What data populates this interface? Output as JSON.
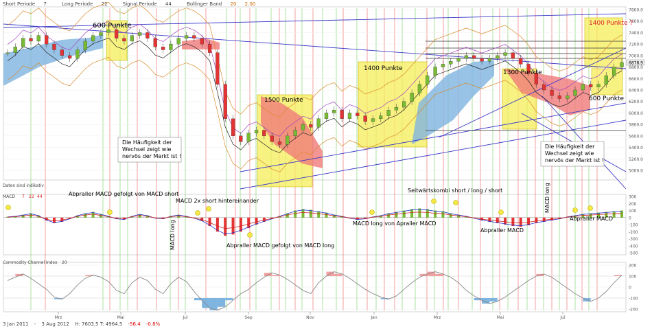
{
  "header": {
    "short_label": "Short Periode",
    "short_val": "7",
    "long_label": "Long Periode",
    "long_val": "22",
    "signal_label": "Signal Periode",
    "signal_val": "44",
    "bb_label": "Bollinger Band",
    "bb_val1": "20",
    "bb_val2": "2.00"
  },
  "footer": {
    "start": "3 Jan 2011",
    "sep": "-",
    "end": "3 Aug 2012",
    "ohlc": "H: 7603.5  T: 4964.5",
    "chg": "-56.4",
    "chg_pct": "-0.8%"
  },
  "colors": {
    "up": "#77bb33",
    "down": "#e33333",
    "cloud_up": "#7fb4e0",
    "cloud_down": "#f07a7a",
    "box": "#f5ee5a",
    "vline_green": "#7cd16a",
    "vline_red": "#ee6a6a",
    "trend": "#3a3ac8"
  },
  "chart_data": {
    "type": "line",
    "price_panel": {
      "yticks": [
        "7800.0",
        "7600.0",
        "7400.0",
        "7200.0",
        "7000.0",
        "6800.0",
        "6600.0",
        "6400.0",
        "6200.0",
        "6000.0",
        "5800.0",
        "5600.0",
        "5400.0",
        "5200.0",
        "5000.0"
      ],
      "last_value": "6878.9",
      "x_ticks": [
        "Mrz",
        "Mai",
        "Jul",
        "Sep",
        "Nov",
        "Jan",
        "Mrz",
        "Mai",
        "Jul"
      ],
      "annotations": [
        {
          "text": "600 Punkte",
          "color": "#000"
        },
        {
          "text": "1500 Punkte",
          "color": "#000"
        },
        {
          "text": "1400 Punkte",
          "color": "#000"
        },
        {
          "text": "1300 Punkte",
          "color": "#000"
        },
        {
          "text": "1400 Punkte ?",
          "color": "#d22"
        },
        {
          "text": "600 Punkte",
          "color": "#000"
        }
      ],
      "notes": [
        {
          "lines": [
            "Die Häufigkeit der",
            "Wechsel zeigt wie",
            "nervös der Markt ist !"
          ]
        },
        {
          "lines": [
            "Die Häufigkeit der",
            "Wechsel zeigt wie",
            "nervös der Markt ist !"
          ]
        }
      ],
      "close_series": [
        7050,
        7150,
        7300,
        7250,
        7350,
        7200,
        7100,
        7000,
        6950,
        7100,
        7250,
        7350,
        7400,
        7450,
        7300,
        7250,
        7350,
        7400,
        7300,
        7150,
        7100,
        7200,
        7300,
        7350,
        7300,
        7200,
        7050,
        6500,
        5900,
        5600,
        5500,
        5650,
        5700,
        5600,
        5500,
        5450,
        5600,
        5700,
        5800,
        5750,
        5900,
        6000,
        6050,
        5900,
        6000,
        5950,
        5850,
        5900,
        5950,
        6050,
        6100,
        6200,
        6350,
        6500,
        6650,
        6800,
        6850,
        6900,
        6950,
        7000,
        6950,
        6900,
        6950,
        7000,
        7050,
        6950,
        6850,
        6700,
        6500,
        6400,
        6300,
        6250,
        6300,
        6400,
        6500,
        6450,
        6500,
        6650,
        6800,
        6880
      ]
    },
    "macd_panel": {
      "label": "Daten sind indikativ",
      "title": "MACD",
      "p1": "7",
      "p2": "22",
      "p3": "44",
      "yticks": [
        "300",
        "200",
        "100",
        "0",
        "-100",
        "-200",
        "-300",
        "-400",
        "-500"
      ],
      "annotations": [
        "Abpraller MACD gefolgt von MACD short",
        "MACD 2x short hintereinander",
        "MACD long",
        "Abpraller MACD gefolgt von MACD long",
        "MACD long von Apraller MACD",
        "Seitwärtskombi short / long / short",
        "Abpraller MACD",
        "MACD long",
        "Abpraller MACD"
      ],
      "hist": [
        10,
        20,
        40,
        60,
        30,
        -40,
        -80,
        -60,
        -20,
        30,
        60,
        80,
        50,
        20,
        -20,
        -30,
        20,
        50,
        30,
        -10,
        -20,
        20,
        40,
        20,
        -10,
        -50,
        -120,
        -200,
        -260,
        -240,
        -200,
        -150,
        -100,
        -60,
        -20,
        20,
        60,
        100,
        120,
        110,
        90,
        70,
        40,
        20,
        -10,
        -30,
        -20,
        10,
        30,
        60,
        80,
        100,
        120,
        130,
        120,
        100,
        90,
        60,
        40,
        20,
        -10,
        -40,
        -60,
        -80,
        -100,
        -120,
        -130,
        -110,
        -80,
        -60,
        -40,
        -20,
        10,
        30,
        50,
        60,
        70,
        80,
        90,
        100
      ]
    },
    "cci_panel": {
      "title": "Commodity Channel Index",
      "period": "20",
      "yticks": [
        "200",
        "100",
        "0",
        "-100",
        "-200"
      ],
      "values": [
        60,
        90,
        120,
        80,
        30,
        -20,
        -90,
        -110,
        -60,
        20,
        80,
        110,
        90,
        50,
        -30,
        -60,
        40,
        90,
        60,
        -20,
        -60,
        30,
        90,
        50,
        -40,
        -120,
        -190,
        -210,
        -180,
        -120,
        -60,
        -20,
        40,
        90,
        130,
        110,
        70,
        20,
        -30,
        -60,
        40,
        100,
        140,
        120,
        80,
        30,
        -20,
        -60,
        -90,
        -110,
        -80,
        -20,
        40,
        90,
        120,
        140,
        120,
        90,
        40,
        -30,
        -80,
        -120,
        -150,
        -130,
        -90,
        -40,
        10,
        60,
        100,
        120,
        90,
        40,
        -10,
        -60,
        -100,
        -130,
        -100,
        -40,
        40,
        110
      ]
    }
  }
}
